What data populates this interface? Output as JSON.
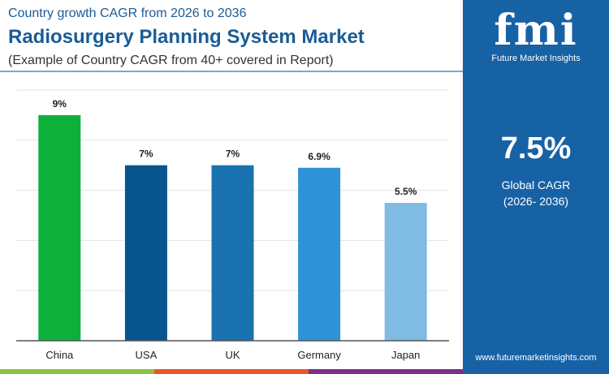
{
  "header": {
    "subtitle": "Country growth CAGR from 2026 to 2036",
    "title": "Radiosurgery Planning System Market",
    "note": "(Example of Country CAGR from 40+ covered in Report)"
  },
  "panel": {
    "logo": "fmi",
    "brand": "Future Market Insights",
    "value": "7.5%",
    "label": "Global CAGR",
    "period": "(2026- 2036)",
    "url": "www.futuremarketinsights.com",
    "color": "#1762a5"
  },
  "stripes": [
    "#8cc43f",
    "#e8562a",
    "#7b2f86"
  ],
  "chart_data": {
    "type": "bar",
    "categories": [
      "China",
      "USA",
      "UK",
      "Germany",
      "Japan"
    ],
    "values": [
      9,
      7,
      7,
      6.9,
      5.5
    ],
    "data_labels": [
      "9%",
      "7%",
      "7%",
      "6.9%",
      "5.5%"
    ],
    "colors": [
      "#0db03a",
      "#07548e",
      "#1a72b0",
      "#2f92d6",
      "#7fbbe3"
    ],
    "ylim": [
      0,
      10
    ],
    "grid": true,
    "yticks": [
      0,
      2,
      4,
      6,
      8,
      10
    ]
  }
}
